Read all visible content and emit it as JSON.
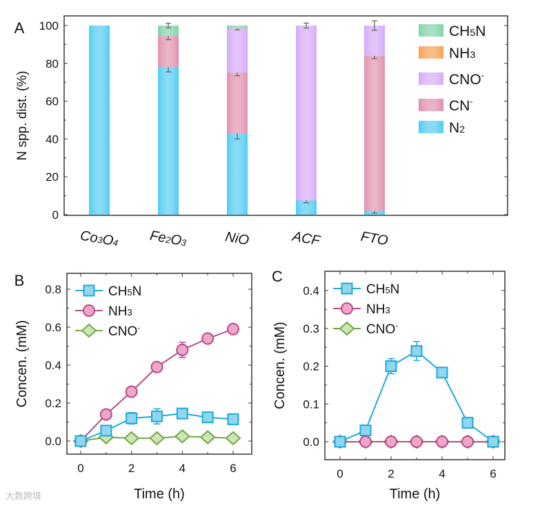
{
  "chart_data": [
    {
      "panel": "A",
      "type": "bar",
      "stacked": true,
      "ylabel": "N spp. dist. (%)",
      "ylim": [
        0,
        100
      ],
      "yticks": [
        0,
        20,
        40,
        60,
        80,
        100
      ],
      "categories": [
        "Co3O4",
        "Fe2O3",
        "NiO",
        "ACF",
        "FTO"
      ],
      "category_labels": [
        {
          "main": [
            "Co",
            "3",
            "O",
            "4"
          ]
        },
        {
          "main": [
            "Fe",
            "2",
            "O",
            "3"
          ]
        },
        {
          "main": [
            "NiO"
          ]
        },
        {
          "main": [
            "ACF"
          ]
        },
        {
          "main": [
            "FTO"
          ]
        }
      ],
      "legend_position": "right",
      "series": [
        {
          "name": "N2",
          "label": "N",
          "sub": "2",
          "sup": "",
          "color": "#4fcbf2",
          "values": [
            100,
            78,
            43,
            7.5,
            2
          ],
          "errors": [
            0,
            2.5,
            3,
            1.2,
            1.2
          ]
        },
        {
          "name": "CN-",
          "label": "CN",
          "sub": "",
          "sup": "-",
          "color": "#e08fae",
          "values": [
            0,
            16.5,
            32,
            0,
            82
          ],
          "errors": [
            0,
            2,
            1.5,
            0,
            1.5
          ]
        },
        {
          "name": "CNO-",
          "label": "CNO",
          "sub": "",
          "sup": "-",
          "color": "#d4a8f7",
          "values": [
            0,
            0,
            23.5,
            92.5,
            16
          ],
          "errors": [
            0,
            0,
            0.8,
            1.3,
            2.5
          ]
        },
        {
          "name": "NH3",
          "label": "NH",
          "sub": "3",
          "sup": "",
          "color": "#f7a050",
          "values": [
            0,
            0,
            0,
            0,
            0
          ],
          "errors": [
            0,
            0,
            0,
            0,
            0
          ]
        },
        {
          "name": "CH5N",
          "label": "CH",
          "sub": "5",
          "sup": "N",
          "color": "#7fd3a4",
          "values": [
            0,
            5.5,
            1.5,
            0,
            0
          ],
          "errors": [
            0,
            1.2,
            0,
            0,
            0
          ]
        }
      ]
    },
    {
      "panel": "B",
      "type": "line",
      "xlabel": "Time (h)",
      "ylabel": "Concen. (mM)",
      "xlim": [
        -0.5,
        6.6
      ],
      "ylim": [
        -0.05,
        0.87
      ],
      "xticks": [
        0,
        2,
        4,
        6
      ],
      "yticks": [
        0.0,
        0.2,
        0.4,
        0.6,
        0.8
      ],
      "ytick_labels": [
        "0.0",
        "0.2",
        "0.4",
        "0.6",
        "0.8"
      ],
      "x": [
        0,
        1,
        2,
        3,
        4,
        5,
        6
      ],
      "legend_position": "top-left",
      "series": [
        {
          "name": "CH5N",
          "label": "CH",
          "sub": "5",
          "sup": "N",
          "marker": "square",
          "color": "#1fa9d6",
          "fill": "#8fd6f0",
          "values": [
            0,
            0.055,
            0.12,
            0.13,
            0.145,
            0.125,
            0.115
          ],
          "errors": [
            0,
            0.01,
            0.03,
            0.04,
            0.02,
            0.015,
            0.02
          ]
        },
        {
          "name": "NH3",
          "label": "NH",
          "sub": "3",
          "sup": "",
          "marker": "circle",
          "color": "#b54a8a",
          "fill": "#f0a6c6",
          "values": [
            0,
            0.14,
            0.26,
            0.39,
            0.48,
            0.54,
            0.59
          ],
          "errors": [
            0,
            0.01,
            0.01,
            0.01,
            0.04,
            0.015,
            0.01
          ]
        },
        {
          "name": "CNO-",
          "label": "CNO",
          "sub": "",
          "sup": "-",
          "marker": "diamond",
          "color": "#6fa843",
          "fill": "#cfe6b4",
          "values": [
            0,
            0.02,
            0.015,
            0.015,
            0.025,
            0.02,
            0.015
          ],
          "errors": [
            0,
            0,
            0,
            0,
            0,
            0,
            0
          ]
        }
      ]
    },
    {
      "panel": "C",
      "type": "line",
      "xlabel": "Time (h)",
      "ylabel": "Concen. (mM)",
      "xlim": [
        -0.4,
        6.6
      ],
      "ylim": [
        -0.05,
        0.45
      ],
      "xticks": [
        0,
        2,
        4,
        6
      ],
      "yticks": [
        0.0,
        0.1,
        0.2,
        0.3,
        0.4
      ],
      "ytick_labels": [
        "0.0",
        "0.1",
        "0.2",
        "0.3",
        "0.4"
      ],
      "x": [
        0,
        1,
        2,
        3,
        4,
        5,
        6
      ],
      "legend_position": "top-left",
      "series": [
        {
          "name": "CH5N",
          "label": "CH",
          "sub": "5",
          "sup": "N",
          "marker": "square",
          "color": "#1fa9d6",
          "fill": "#8fd6f0",
          "values": [
            0,
            0.03,
            0.2,
            0.24,
            0.183,
            0.05,
            0
          ],
          "errors": [
            0,
            0,
            0.02,
            0.025,
            0,
            0,
            0
          ]
        },
        {
          "name": "NH3",
          "label": "NH",
          "sub": "3",
          "sup": "",
          "marker": "circle",
          "color": "#b54a8a",
          "fill": "#f0a6c6",
          "values": [
            0,
            0,
            0,
            0,
            0,
            0,
            0
          ],
          "errors": [
            0,
            0,
            0,
            0,
            0,
            0,
            0
          ]
        },
        {
          "name": "CNO-",
          "label": "CNO",
          "sub": "",
          "sup": "-",
          "marker": "diamond",
          "color": "#6fa843",
          "fill": "#cfe6b4",
          "values": [
            0,
            0,
            0,
            0,
            0,
            0,
            0
          ],
          "errors": [
            0,
            0,
            0,
            0,
            0,
            0,
            0
          ]
        }
      ]
    }
  ],
  "watermark": "大数跨境"
}
